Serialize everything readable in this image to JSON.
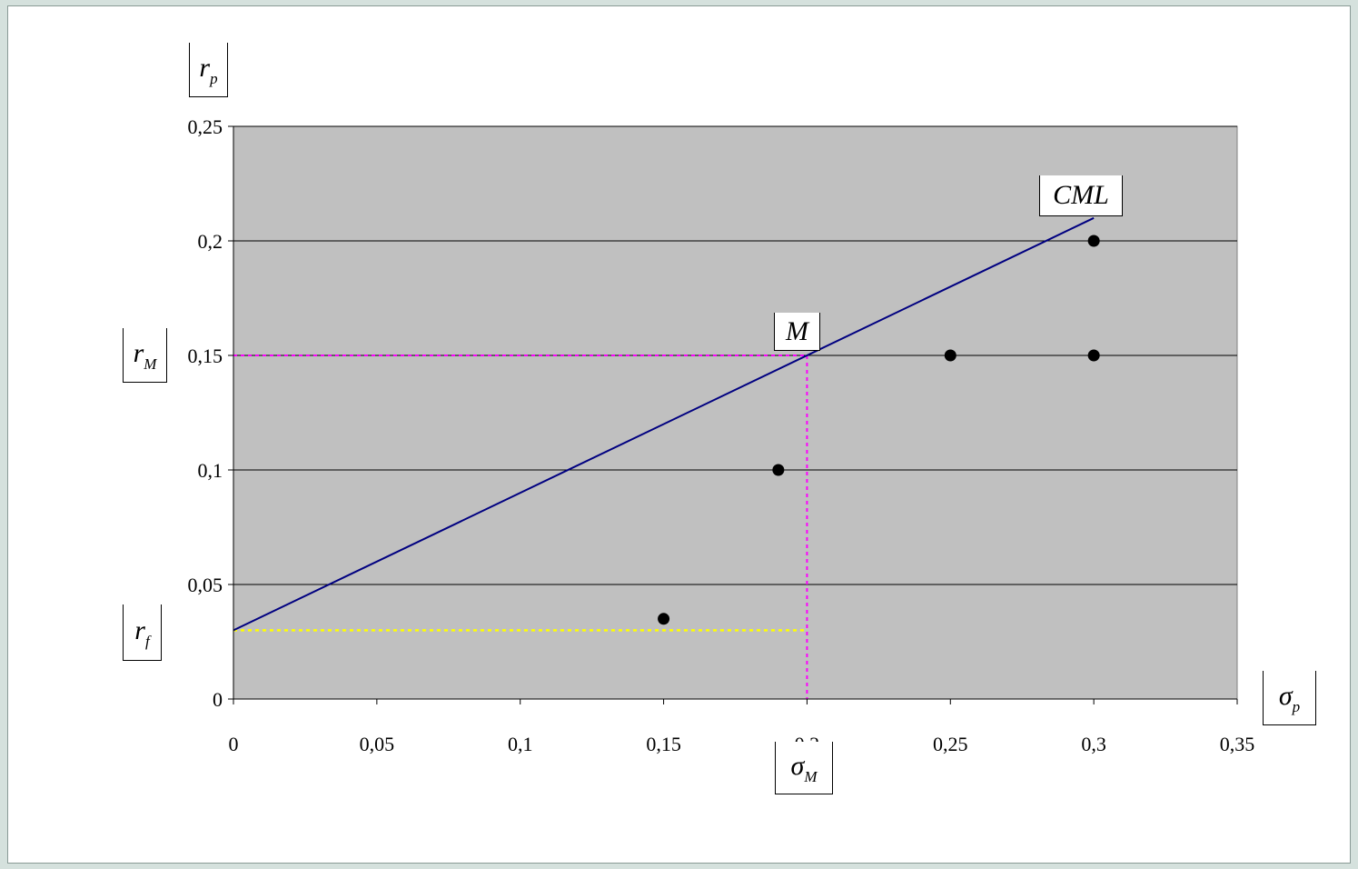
{
  "chart_data": {
    "type": "scatter",
    "x_ticks": [
      "0",
      "0,05",
      "0,1",
      "0,15",
      "0,2",
      "0,25",
      "0,3",
      "0,35"
    ],
    "y_ticks": [
      "0",
      "0,05",
      "0,1",
      "0,15",
      "0,2",
      "0,25"
    ],
    "xlim": [
      0,
      0.35
    ],
    "ylim": [
      0,
      0.25
    ],
    "grid": "horizontal",
    "plot_background": "#c0c0c0",
    "points": [
      {
        "x": 0.15,
        "y": 0.035
      },
      {
        "x": 0.19,
        "y": 0.1
      },
      {
        "x": 0.25,
        "y": 0.15
      },
      {
        "x": 0.3,
        "y": 0.15
      },
      {
        "x": 0.3,
        "y": 0.2
      }
    ],
    "cml": {
      "label": "CML",
      "from": [
        0,
        0.03
      ],
      "to": [
        0.3,
        0.21
      ],
      "color": "#000080"
    },
    "market_point": {
      "label": "M",
      "x": 0.2,
      "y": 0.15
    },
    "risk_free_guide": {
      "y": 0.03,
      "x_end": 0.2,
      "color": "#ffff00"
    },
    "market_guides": {
      "color": "#ff00ff"
    },
    "labels": {
      "y_axis": {
        "main": "r",
        "sub": "p"
      },
      "x_axis": {
        "main": "σ",
        "sub": "p"
      },
      "r_m": {
        "main": "r",
        "sub": "M"
      },
      "r_f": {
        "main": "r",
        "sub": "f"
      },
      "sigma_m": {
        "main": "σ",
        "sub": "M"
      }
    }
  }
}
